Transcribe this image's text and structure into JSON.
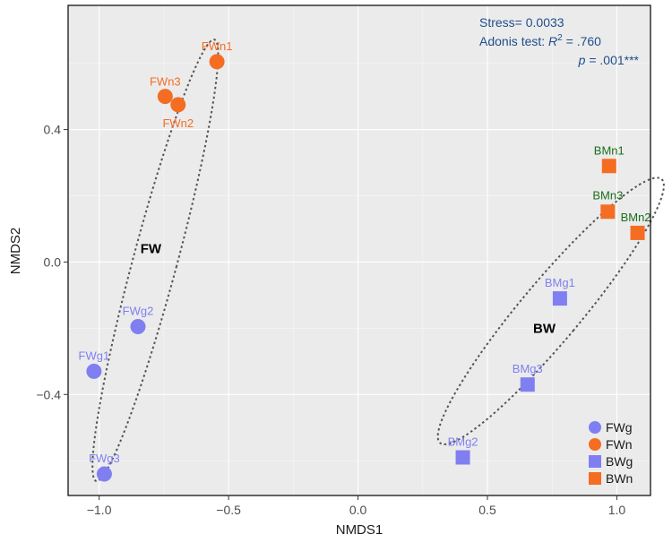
{
  "chart_data": {
    "type": "scatter",
    "xlabel": "NMDS1",
    "ylabel": "NMDS2",
    "xlim": [
      -1.12,
      1.13
    ],
    "ylim": [
      -0.705,
      0.775
    ],
    "x_ticks": [
      -1.0,
      -0.5,
      0.0,
      0.5,
      1.0
    ],
    "x_tick_labels": [
      "−1.0",
      "−0.5",
      "0.0",
      "0.5",
      "1.0"
    ],
    "y_ticks": [
      -0.4,
      0.0,
      0.4
    ],
    "y_tick_labels": [
      "−0.4",
      "0.0",
      "0.4"
    ],
    "grid": true,
    "background": "#ebebeb",
    "series": [
      {
        "name": "FWg",
        "shape": "circle",
        "color": "#7f7ff2",
        "label_color": "#7f7ff2",
        "points": [
          {
            "label": "FWg1",
            "x": -1.02,
            "y": -0.33
          },
          {
            "label": "FWg2",
            "x": -0.85,
            "y": -0.195
          },
          {
            "label": "FWg3",
            "x": -0.98,
            "y": -0.64
          }
        ]
      },
      {
        "name": "FWn",
        "shape": "circle",
        "color": "#f46d22",
        "label_color": "#f46d22",
        "points": [
          {
            "label": "FWn1",
            "x": -0.545,
            "y": 0.605
          },
          {
            "label": "FWn2",
            "x": -0.695,
            "y": 0.475
          },
          {
            "label": "FWn3",
            "x": -0.745,
            "y": 0.5
          }
        ]
      },
      {
        "name": "BWg",
        "shape": "square",
        "color": "#7f7ff2",
        "label_color": "#7f7ff2",
        "points": [
          {
            "label": "BMg1",
            "x": 0.78,
            "y": -0.11
          },
          {
            "label": "BMg2",
            "x": 0.405,
            "y": -0.59
          },
          {
            "label": "BMg3",
            "x": 0.655,
            "y": -0.37
          }
        ]
      },
      {
        "name": "BWn",
        "shape": "square",
        "color": "#f46d22",
        "label_color": "#1b6e1b",
        "points": [
          {
            "label": "BMn1",
            "x": 0.97,
            "y": 0.29
          },
          {
            "label": "BMn2",
            "x": 1.08,
            "y": 0.088
          },
          {
            "label": "BMn3",
            "x": 0.965,
            "y": 0.152
          }
        ]
      }
    ],
    "ellipses": [
      {
        "group": "FW",
        "label": "FW",
        "cx": -0.783,
        "cy": 0.005,
        "rx": 0.085,
        "ry": 0.69,
        "angle_deg": 15
      },
      {
        "group": "BW",
        "label": "BW",
        "cx": 0.745,
        "cy": -0.148,
        "rx": 0.115,
        "ry": 0.52,
        "angle_deg": 40
      }
    ],
    "group_labels": [
      {
        "text": "FW",
        "x": -0.8,
        "y": 0.04
      },
      {
        "text": "BW",
        "x": 0.72,
        "y": -0.2
      }
    ],
    "annotations": {
      "stress": "Stress= 0.0033",
      "adonis_prefix": "Adonis test: ",
      "adonis_r": "R",
      "adonis_sup": "2",
      "adonis_value": " = .760",
      "p_italic": "p",
      "p_value": " = .001***"
    },
    "legend": {
      "position": "bottom-right",
      "entries": [
        {
          "name": "FWg",
          "shape": "circle",
          "color": "#7f7ff2"
        },
        {
          "name": "FWn",
          "shape": "circle",
          "color": "#f46d22"
        },
        {
          "name": "BWg",
          "shape": "square",
          "color": "#7f7ff2"
        },
        {
          "name": "BWn",
          "shape": "square",
          "color": "#f46d22"
        }
      ]
    }
  }
}
